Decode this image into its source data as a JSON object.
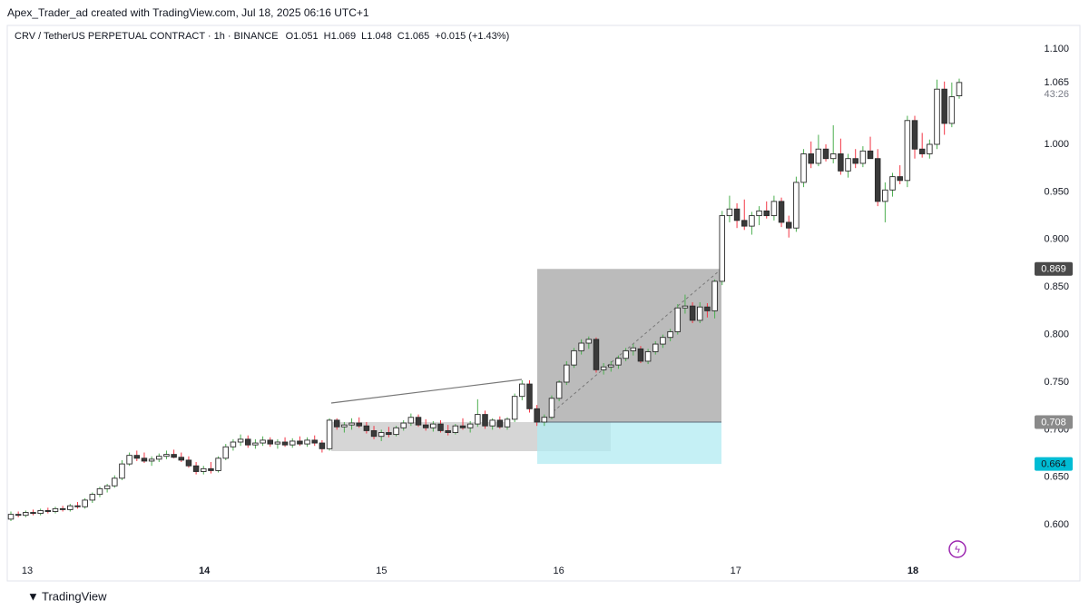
{
  "header": "Apex_Trader_ad created with TradingView.com, Jul 18, 2025 06:16 UTC+1",
  "footer": "TradingView",
  "chart_data": {
    "type": "candlestick",
    "title": "CRV / TetherUS PERPETUAL CONTRACT · 1h · BINANCE",
    "legend_values": [
      "O1.051",
      "H1.069",
      "L1.048",
      "C1.065",
      "+0.015 (+1.43%)"
    ],
    "x_labels": [
      "13",
      "14",
      "15",
      "16",
      "17",
      "18"
    ],
    "ylim": [
      0.541,
      1.125
    ],
    "yticks": [
      {
        "value": 0.6,
        "label": "0.600"
      },
      {
        "value": 0.65,
        "label": "0.650"
      },
      {
        "value": 0.7,
        "label": "0.700"
      },
      {
        "value": 0.75,
        "label": "0.750"
      },
      {
        "value": 0.8,
        "label": "0.800"
      },
      {
        "value": 0.85,
        "label": "0.850"
      },
      {
        "value": 0.9,
        "label": "0.900"
      },
      {
        "value": 0.95,
        "label": "0.950"
      },
      {
        "value": 1.0,
        "label": "1.000"
      },
      {
        "value": 1.1,
        "label": "1.100"
      }
    ],
    "up_wick_color": "#4caf50",
    "down_wick_color": "#f23645",
    "up_body_color": "#ffffff",
    "down_body_color": "#3a3a3a",
    "last_price": 1.065,
    "countdown": "43:26",
    "position": {
      "target": 0.869,
      "entry": 0.708,
      "stop": 0.664
    },
    "candles": [
      [
        0.606,
        0.614,
        0.604,
        0.611
      ],
      [
        0.611,
        0.614,
        0.608,
        0.61
      ],
      [
        0.61,
        0.615,
        0.608,
        0.613
      ],
      [
        0.613,
        0.616,
        0.61,
        0.612
      ],
      [
        0.612,
        0.617,
        0.61,
        0.615
      ],
      [
        0.615,
        0.618,
        0.612,
        0.614
      ],
      [
        0.614,
        0.619,
        0.612,
        0.617
      ],
      [
        0.617,
        0.62,
        0.614,
        0.616
      ],
      [
        0.616,
        0.622,
        0.614,
        0.62
      ],
      [
        0.62,
        0.624,
        0.617,
        0.619
      ],
      [
        0.619,
        0.628,
        0.617,
        0.626
      ],
      [
        0.626,
        0.634,
        0.623,
        0.632
      ],
      [
        0.632,
        0.64,
        0.629,
        0.638
      ],
      [
        0.638,
        0.643,
        0.634,
        0.641
      ],
      [
        0.641,
        0.652,
        0.639,
        0.649
      ],
      [
        0.649,
        0.668,
        0.647,
        0.664
      ],
      [
        0.664,
        0.676,
        0.662,
        0.673
      ],
      [
        0.673,
        0.678,
        0.667,
        0.67
      ],
      [
        0.67,
        0.676,
        0.665,
        0.667
      ],
      [
        0.667,
        0.672,
        0.662,
        0.669
      ],
      [
        0.669,
        0.675,
        0.666,
        0.672
      ],
      [
        0.672,
        0.678,
        0.669,
        0.674
      ],
      [
        0.674,
        0.679,
        0.67,
        0.671
      ],
      [
        0.671,
        0.676,
        0.666,
        0.668
      ],
      [
        0.668,
        0.672,
        0.66,
        0.662
      ],
      [
        0.662,
        0.666,
        0.653,
        0.656
      ],
      [
        0.656,
        0.662,
        0.653,
        0.659
      ],
      [
        0.659,
        0.666,
        0.654,
        0.657
      ],
      [
        0.657,
        0.672,
        0.655,
        0.67
      ],
      [
        0.67,
        0.685,
        0.668,
        0.682
      ],
      [
        0.682,
        0.69,
        0.678,
        0.687
      ],
      [
        0.687,
        0.695,
        0.683,
        0.69
      ],
      [
        0.69,
        0.694,
        0.681,
        0.684
      ],
      [
        0.684,
        0.69,
        0.68,
        0.686
      ],
      [
        0.686,
        0.693,
        0.683,
        0.689
      ],
      [
        0.689,
        0.692,
        0.682,
        0.685
      ],
      [
        0.685,
        0.69,
        0.68,
        0.687
      ],
      [
        0.687,
        0.692,
        0.682,
        0.684
      ],
      [
        0.684,
        0.691,
        0.681,
        0.688
      ],
      [
        0.688,
        0.693,
        0.683,
        0.685
      ],
      [
        0.685,
        0.692,
        0.682,
        0.689
      ],
      [
        0.689,
        0.694,
        0.683,
        0.686
      ],
      [
        0.686,
        0.689,
        0.676,
        0.68
      ],
      [
        0.68,
        0.712,
        0.678,
        0.71
      ],
      [
        0.71,
        0.712,
        0.7,
        0.703
      ],
      [
        0.703,
        0.708,
        0.697,
        0.705
      ],
      [
        0.705,
        0.712,
        0.7,
        0.707
      ],
      [
        0.707,
        0.713,
        0.702,
        0.704
      ],
      [
        0.704,
        0.708,
        0.696,
        0.699
      ],
      [
        0.699,
        0.704,
        0.69,
        0.693
      ],
      [
        0.693,
        0.7,
        0.688,
        0.697
      ],
      [
        0.697,
        0.703,
        0.692,
        0.695
      ],
      [
        0.695,
        0.704,
        0.693,
        0.702
      ],
      [
        0.702,
        0.71,
        0.699,
        0.707
      ],
      [
        0.707,
        0.717,
        0.704,
        0.713
      ],
      [
        0.713,
        0.716,
        0.703,
        0.705
      ],
      [
        0.705,
        0.711,
        0.699,
        0.702
      ],
      [
        0.702,
        0.709,
        0.698,
        0.706
      ],
      [
        0.706,
        0.71,
        0.697,
        0.699
      ],
      [
        0.699,
        0.705,
        0.694,
        0.697
      ],
      [
        0.697,
        0.706,
        0.695,
        0.704
      ],
      [
        0.704,
        0.712,
        0.7,
        0.702
      ],
      [
        0.702,
        0.709,
        0.697,
        0.706
      ],
      [
        0.706,
        0.732,
        0.703,
        0.716
      ],
      [
        0.716,
        0.72,
        0.701,
        0.704
      ],
      [
        0.704,
        0.712,
        0.7,
        0.71
      ],
      [
        0.71,
        0.714,
        0.701,
        0.703
      ],
      [
        0.703,
        0.713,
        0.7,
        0.711
      ],
      [
        0.711,
        0.738,
        0.708,
        0.735
      ],
      [
        0.735,
        0.752,
        0.731,
        0.748
      ],
      [
        0.748,
        0.752,
        0.718,
        0.722
      ],
      [
        0.722,
        0.726,
        0.704,
        0.708
      ],
      [
        0.708,
        0.716,
        0.704,
        0.713
      ],
      [
        0.713,
        0.736,
        0.711,
        0.733
      ],
      [
        0.733,
        0.752,
        0.73,
        0.75
      ],
      [
        0.75,
        0.772,
        0.747,
        0.768
      ],
      [
        0.768,
        0.786,
        0.765,
        0.783
      ],
      [
        0.783,
        0.795,
        0.779,
        0.791
      ],
      [
        0.791,
        0.798,
        0.785,
        0.795
      ],
      [
        0.795,
        0.797,
        0.76,
        0.763
      ],
      [
        0.763,
        0.77,
        0.758,
        0.766
      ],
      [
        0.766,
        0.772,
        0.761,
        0.768
      ],
      [
        0.768,
        0.778,
        0.764,
        0.775
      ],
      [
        0.775,
        0.786,
        0.772,
        0.783
      ],
      [
        0.783,
        0.79,
        0.778,
        0.786
      ],
      [
        0.785,
        0.788,
        0.77,
        0.772
      ],
      [
        0.772,
        0.785,
        0.769,
        0.782
      ],
      [
        0.782,
        0.793,
        0.779,
        0.79
      ],
      [
        0.79,
        0.8,
        0.786,
        0.797
      ],
      [
        0.797,
        0.806,
        0.793,
        0.803
      ],
      [
        0.803,
        0.832,
        0.8,
        0.828
      ],
      [
        0.828,
        0.842,
        0.822,
        0.83
      ],
      [
        0.83,
        0.834,
        0.812,
        0.815
      ],
      [
        0.815,
        0.834,
        0.812,
        0.829
      ],
      [
        0.829,
        0.833,
        0.818,
        0.825
      ],
      [
        0.825,
        0.858,
        0.817,
        0.856
      ],
      [
        0.856,
        0.93,
        0.852,
        0.925
      ],
      [
        0.925,
        0.946,
        0.918,
        0.932
      ],
      [
        0.932,
        0.938,
        0.912,
        0.92
      ],
      [
        0.92,
        0.942,
        0.91,
        0.914
      ],
      [
        0.914,
        0.929,
        0.905,
        0.925
      ],
      [
        0.925,
        0.935,
        0.915,
        0.93
      ],
      [
        0.93,
        0.94,
        0.922,
        0.925
      ],
      [
        0.925,
        0.946,
        0.92,
        0.94
      ],
      [
        0.94,
        0.944,
        0.913,
        0.918
      ],
      [
        0.918,
        0.925,
        0.902,
        0.912
      ],
      [
        0.912,
        0.966,
        0.908,
        0.96
      ],
      [
        0.96,
        0.995,
        0.955,
        0.99
      ],
      [
        0.99,
        1.003,
        0.975,
        0.98
      ],
      [
        0.98,
        1.01,
        0.977,
        0.995
      ],
      [
        0.995,
        1.0,
        0.982,
        0.985
      ],
      [
        0.985,
        1.02,
        0.98,
        0.99
      ],
      [
        0.99,
        1.006,
        0.968,
        0.972
      ],
      [
        0.972,
        0.99,
        0.965,
        0.985
      ],
      [
        0.985,
        0.995,
        0.975,
        0.98
      ],
      [
        0.98,
        0.998,
        0.976,
        0.993
      ],
      [
        0.993,
        1.008,
        0.987,
        0.985
      ],
      [
        0.985,
        0.995,
        0.935,
        0.94
      ],
      [
        0.94,
        0.96,
        0.918,
        0.952
      ],
      [
        0.952,
        0.97,
        0.945,
        0.966
      ],
      [
        0.966,
        0.978,
        0.958,
        0.962
      ],
      [
        0.962,
        1.03,
        0.955,
        1.025
      ],
      [
        1.025,
        1.03,
        0.985,
        0.995
      ],
      [
        0.995,
        1.012,
        0.986,
        0.99
      ],
      [
        0.99,
        1.005,
        0.985,
        1.0
      ],
      [
        1.0,
        1.068,
        0.995,
        1.058
      ],
      [
        1.058,
        1.066,
        1.01,
        1.022
      ],
      [
        1.022,
        1.065,
        1.018,
        1.05
      ],
      [
        1.051,
        1.069,
        1.048,
        1.065
      ]
    ]
  }
}
